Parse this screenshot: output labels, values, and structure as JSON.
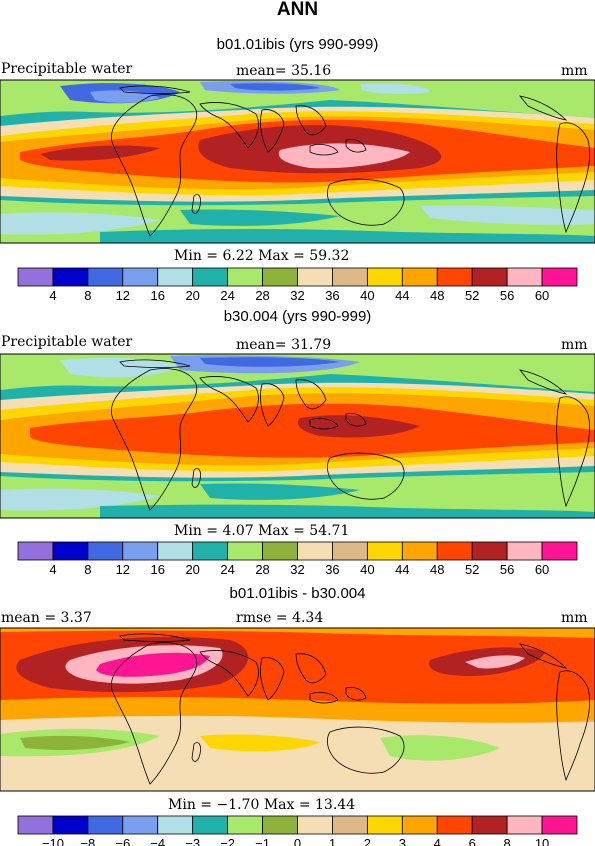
{
  "page_title": "ANN",
  "panels": [
    {
      "title": "b01.01ibis (yrs 990-999)",
      "left_label": "Precipitable water",
      "center_label": "mean=  35.16",
      "unit": "mm",
      "minmax": "Min =    6.22  Max =  59.32",
      "levels": [
        "4",
        "8",
        "12",
        "16",
        "20",
        "24",
        "28",
        "32",
        "36",
        "40",
        "44",
        "48",
        "52",
        "56",
        "60"
      ]
    },
    {
      "title": "b30.004 (yrs 990-999)",
      "left_label": "Precipitable water",
      "center_label": "mean=  31.79",
      "unit": "mm",
      "minmax": "Min =    4.07  Max =  54.71",
      "levels": [
        "4",
        "8",
        "12",
        "16",
        "20",
        "24",
        "28",
        "32",
        "36",
        "40",
        "44",
        "48",
        "52",
        "56",
        "60"
      ]
    },
    {
      "title": "b01.01ibis - b30.004",
      "left_label": "mean =    3.37",
      "center_label": "rmse =   4.34",
      "unit": "mm",
      "minmax": "Min =  −1.70  Max =  13.44",
      "levels": [
        "−10",
        "−8",
        "−6",
        "−4",
        "−3",
        "−2",
        "−1",
        "0",
        "1",
        "2",
        "3",
        "4",
        "6",
        "8",
        "10"
      ]
    }
  ],
  "palette": [
    "#9370db",
    "#0000cd",
    "#4169e1",
    "#7b9fef",
    "#b0e0e6",
    "#20b2aa",
    "#a8e86a",
    "#8db33a",
    "#f5deb3",
    "#deb887",
    "#ffd700",
    "#ffa500",
    "#ff4500",
    "#b22222",
    "#ffb6c1",
    "#ff1493"
  ]
}
